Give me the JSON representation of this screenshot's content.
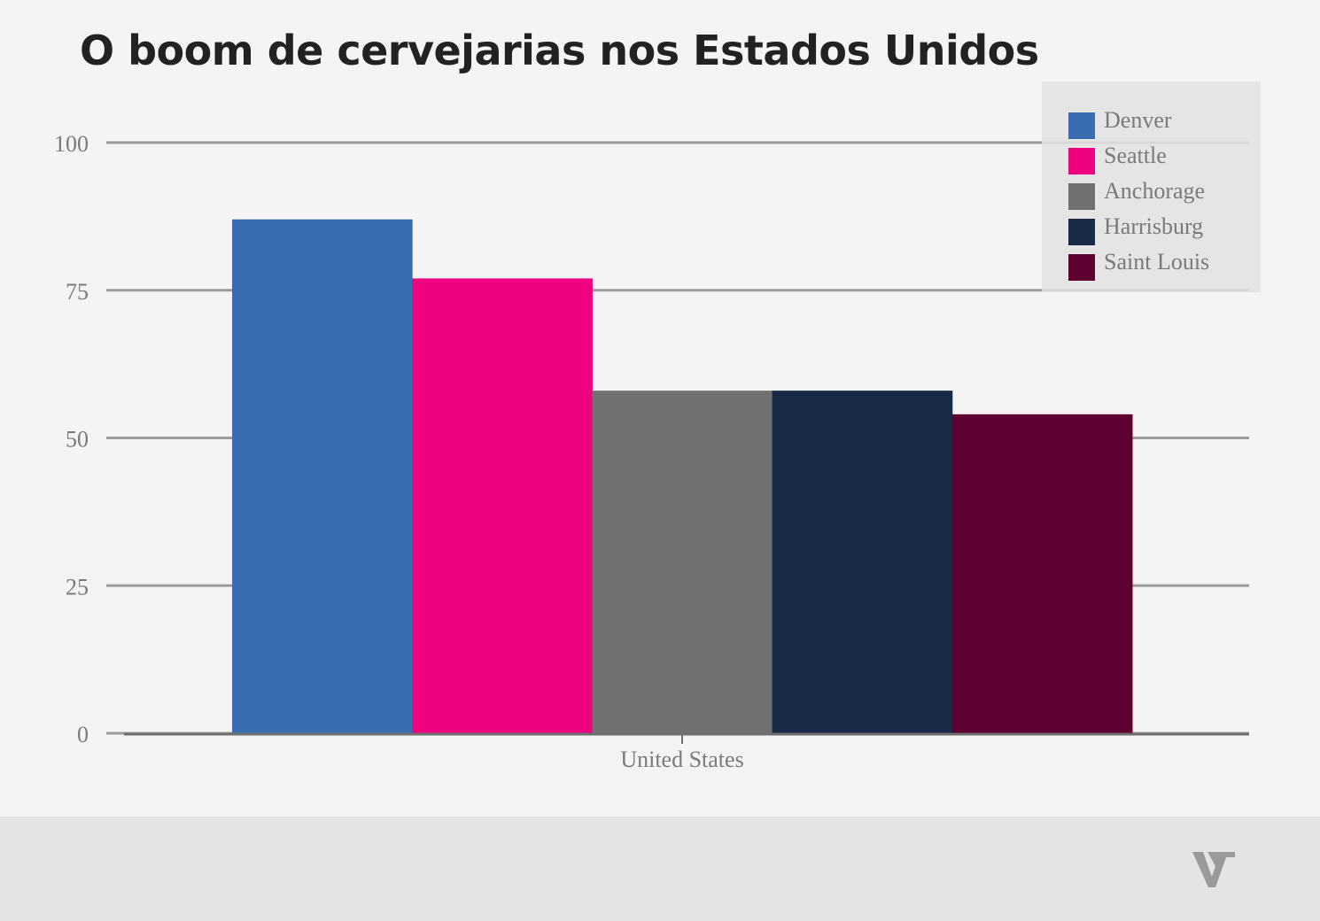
{
  "chart_data": {
    "type": "bar",
    "title": "O boom de cervejarias nos Estados Unidos",
    "categories": [
      "United States"
    ],
    "series": [
      {
        "name": "Denver",
        "values": [
          87
        ],
        "color": "#3a6daf"
      },
      {
        "name": "Seattle",
        "values": [
          77
        ],
        "color": "#ee0280"
      },
      {
        "name": "Anchorage",
        "values": [
          58
        ],
        "color": "#707070"
      },
      {
        "name": "Harrisburg",
        "values": [
          58
        ],
        "color": "#182a46"
      },
      {
        "name": "Saint Louis",
        "values": [
          54
        ],
        "color": "#5e0030"
      }
    ],
    "ylim": [
      0,
      100
    ],
    "yticks": [
      0,
      25,
      50,
      75,
      100
    ],
    "xlabel": "",
    "ylabel": "",
    "grid": true,
    "legend_position": "top-right"
  },
  "footer": {
    "logo_icon": "v-logo-icon",
    "background": "#e4e4e4"
  }
}
